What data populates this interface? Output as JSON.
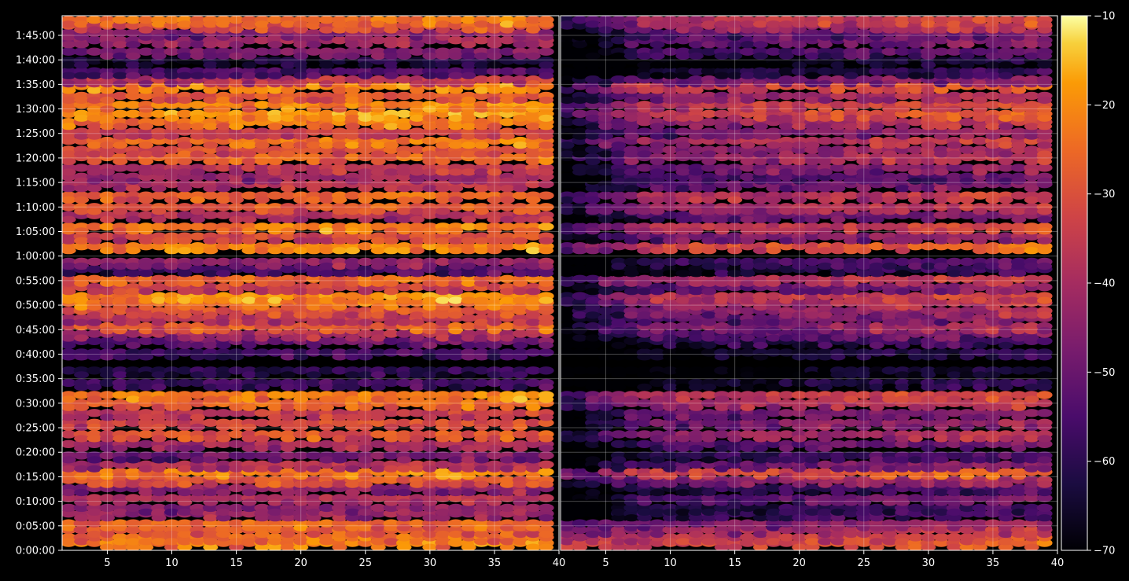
{
  "chart_data": {
    "type": "heatmap",
    "background": "#000000",
    "colormap": "inferno",
    "grid": true,
    "panels": [
      {
        "name": "",
        "x_range": [
          1.5,
          40
        ],
        "x_ticks": [
          5,
          10,
          15,
          20,
          25,
          30,
          35,
          40
        ],
        "y_range_seconds": [
          0,
          6540
        ],
        "y_ticks": [
          "0:00:00",
          "0:05:00",
          "0:10:00",
          "0:15:00",
          "0:20:00",
          "0:25:00",
          "0:30:00",
          "0:35:00",
          "0:40:00",
          "0:45:00",
          "0:50:00",
          "0:55:00",
          "1:00:00",
          "1:05:00",
          "1:10:00",
          "1:15:00",
          "1:20:00",
          "1:25:00",
          "1:30:00",
          "1:35:00",
          "1:40:00",
          "1:45:00"
        ]
      },
      {
        "name": "",
        "x_range": [
          1.5,
          40
        ],
        "x_ticks": [
          5,
          10,
          15,
          20,
          25,
          30,
          35,
          40
        ],
        "y_range_seconds": [
          0,
          6540
        ],
        "y_ticks": []
      }
    ],
    "colorbar": {
      "range": [
        -70,
        -10
      ],
      "ticks": [
        "−10",
        "−20",
        "−30",
        "−40",
        "−50",
        "−60",
        "−70"
      ],
      "tick_values": [
        -10,
        -20,
        -30,
        -40,
        -50,
        -60,
        -70
      ]
    },
    "bands_left": [
      {
        "t": 90,
        "v": -22
      },
      {
        "t": 160,
        "v": -24
      },
      {
        "t": 250,
        "v": -28
      },
      {
        "t": 330,
        "v": -26
      },
      {
        "t": 450,
        "v": -42
      },
      {
        "t": 520,
        "v": -45
      },
      {
        "t": 640,
        "v": -38
      },
      {
        "t": 760,
        "v": -44
      },
      {
        "t": 860,
        "v": -30
      },
      {
        "t": 960,
        "v": -22
      },
      {
        "t": 1050,
        "v": -38
      },
      {
        "t": 1160,
        "v": -48
      },
      {
        "t": 1300,
        "v": -40
      },
      {
        "t": 1420,
        "v": -30
      },
      {
        "t": 1560,
        "v": -32
      },
      {
        "t": 1680,
        "v": -34
      },
      {
        "t": 1800,
        "v": -26
      },
      {
        "t": 1900,
        "v": -22
      },
      {
        "t": 2050,
        "v": -56
      },
      {
        "t": 2200,
        "v": -60
      },
      {
        "t": 2420,
        "v": -56
      },
      {
        "t": 2560,
        "v": -50
      },
      {
        "t": 2650,
        "v": -40
      },
      {
        "t": 2740,
        "v": -28
      },
      {
        "t": 2840,
        "v": -36
      },
      {
        "t": 2930,
        "v": -30
      },
      {
        "t": 3030,
        "v": -24
      },
      {
        "t": 3110,
        "v": -20
      },
      {
        "t": 3220,
        "v": -34
      },
      {
        "t": 3320,
        "v": -26
      },
      {
        "t": 3440,
        "v": -56
      },
      {
        "t": 3530,
        "v": -44
      },
      {
        "t": 3720,
        "v": -22
      },
      {
        "t": 3840,
        "v": -32
      },
      {
        "t": 3960,
        "v": -22
      },
      {
        "t": 4100,
        "v": -38
      },
      {
        "t": 4200,
        "v": -28
      },
      {
        "t": 4340,
        "v": -26
      },
      {
        "t": 4480,
        "v": -38
      },
      {
        "t": 4570,
        "v": -42
      },
      {
        "t": 4680,
        "v": -36
      },
      {
        "t": 4810,
        "v": -26
      },
      {
        "t": 4900,
        "v": -30
      },
      {
        "t": 5010,
        "v": -24
      },
      {
        "t": 5120,
        "v": -34
      },
      {
        "t": 5240,
        "v": -24
      },
      {
        "t": 5340,
        "v": -18
      },
      {
        "t": 5450,
        "v": -22
      },
      {
        "t": 5560,
        "v": -28
      },
      {
        "t": 5680,
        "v": -20
      },
      {
        "t": 5760,
        "v": -36
      },
      {
        "t": 5860,
        "v": -56
      },
      {
        "t": 5990,
        "v": -64
      },
      {
        "t": 6100,
        "v": -48
      },
      {
        "t": 6240,
        "v": -42
      },
      {
        "t": 6330,
        "v": -46
      },
      {
        "t": 6420,
        "v": -30
      },
      {
        "t": 6490,
        "v": -24
      }
    ],
    "bands_right": [
      {
        "t": 90,
        "v": -30
      },
      {
        "t": 160,
        "v": -34
      },
      {
        "t": 250,
        "v": -40
      },
      {
        "t": 330,
        "v": -46
      },
      {
        "t": 450,
        "v": -56
      },
      {
        "t": 520,
        "v": -60
      },
      {
        "t": 640,
        "v": -52
      },
      {
        "t": 760,
        "v": -58
      },
      {
        "t": 860,
        "v": -44
      },
      {
        "t": 960,
        "v": -30
      },
      {
        "t": 1050,
        "v": -50
      },
      {
        "t": 1160,
        "v": -58
      },
      {
        "t": 1300,
        "v": -52
      },
      {
        "t": 1420,
        "v": -42
      },
      {
        "t": 1560,
        "v": -46
      },
      {
        "t": 1680,
        "v": -48
      },
      {
        "t": 1800,
        "v": -40
      },
      {
        "t": 1900,
        "v": -34
      },
      {
        "t": 2050,
        "v": -64
      },
      {
        "t": 2200,
        "v": -68
      },
      {
        "t": 2420,
        "v": -64
      },
      {
        "t": 2560,
        "v": -60
      },
      {
        "t": 2650,
        "v": -52
      },
      {
        "t": 2740,
        "v": -44
      },
      {
        "t": 2840,
        "v": -50
      },
      {
        "t": 2930,
        "v": -44
      },
      {
        "t": 3030,
        "v": -40
      },
      {
        "t": 3110,
        "v": -36
      },
      {
        "t": 3220,
        "v": -50
      },
      {
        "t": 3320,
        "v": -38
      },
      {
        "t": 3440,
        "v": -62
      },
      {
        "t": 3530,
        "v": -56
      },
      {
        "t": 3720,
        "v": -30
      },
      {
        "t": 3840,
        "v": -46
      },
      {
        "t": 3960,
        "v": -36
      },
      {
        "t": 4100,
        "v": -50
      },
      {
        "t": 4200,
        "v": -40
      },
      {
        "t": 4340,
        "v": -38
      },
      {
        "t": 4480,
        "v": -50
      },
      {
        "t": 4570,
        "v": -54
      },
      {
        "t": 4680,
        "v": -48
      },
      {
        "t": 4810,
        "v": -40
      },
      {
        "t": 4900,
        "v": -44
      },
      {
        "t": 5010,
        "v": -38
      },
      {
        "t": 5120,
        "v": -48
      },
      {
        "t": 5240,
        "v": -40
      },
      {
        "t": 5340,
        "v": -32
      },
      {
        "t": 5450,
        "v": -34
      },
      {
        "t": 5560,
        "v": -42
      },
      {
        "t": 5680,
        "v": -32
      },
      {
        "t": 5760,
        "v": -48
      },
      {
        "t": 5860,
        "v": -62
      },
      {
        "t": 5990,
        "v": -68
      },
      {
        "t": 6100,
        "v": -54
      },
      {
        "t": 6240,
        "v": -50
      },
      {
        "t": 6330,
        "v": -52
      },
      {
        "t": 6420,
        "v": -40
      },
      {
        "t": 6490,
        "v": -36
      }
    ]
  }
}
